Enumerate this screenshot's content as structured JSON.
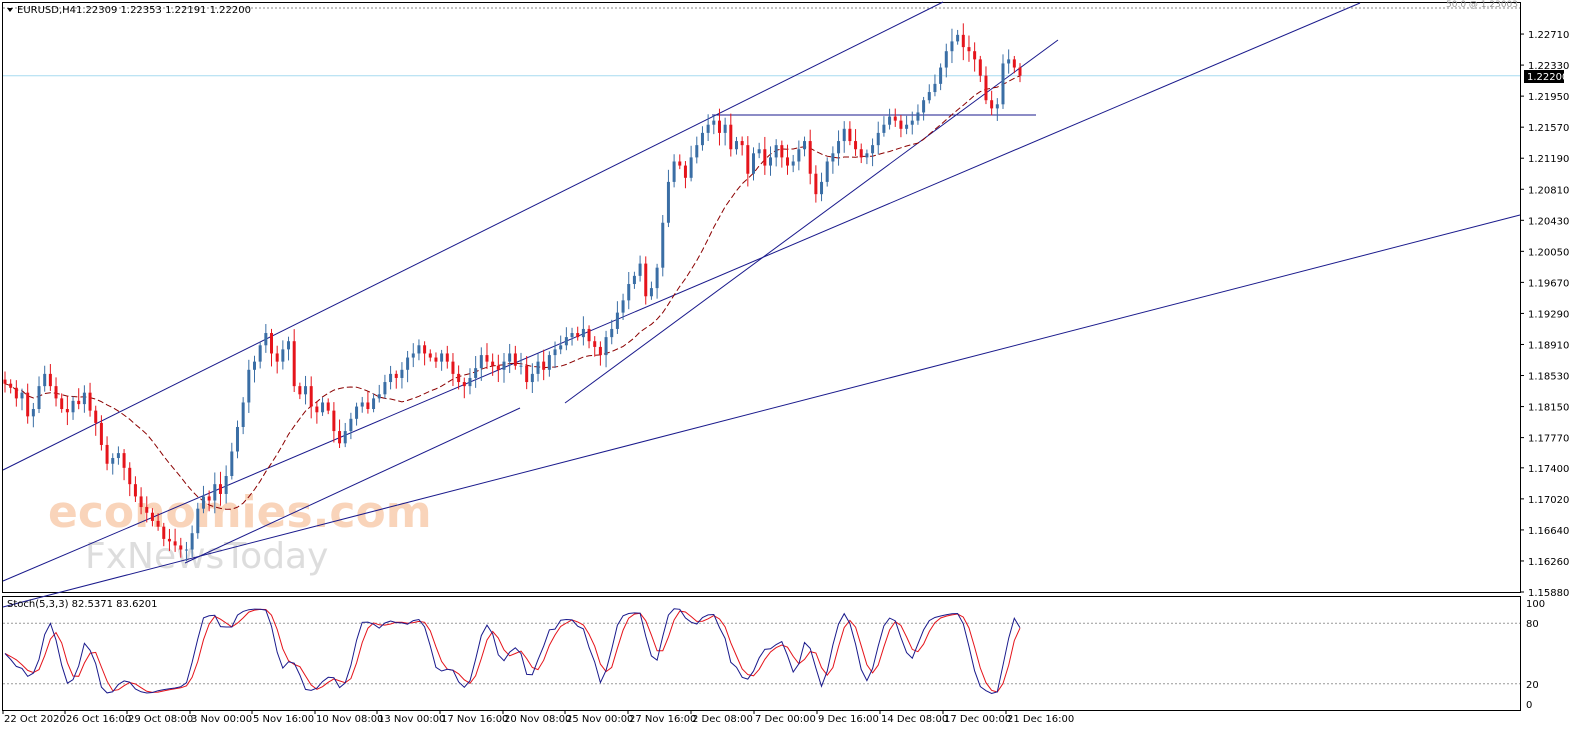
{
  "window": {
    "symbol_label": "EURUSD,H4",
    "ohlc_text": "1.22309 1.22353 1.22191 1.22200",
    "fib_label": "50.0 @ 1.23003"
  },
  "oscillator": {
    "label": "Stoch(5,3,3) 82.5371 83.6201",
    "levels": [
      "100",
      "80",
      "20",
      "0"
    ]
  },
  "watermark": {
    "line1": "economies.com",
    "line2": "FxNewsToday"
  },
  "colors": {
    "bull": "#3a6ea5",
    "bear": "#e5141b",
    "ma": "#8b0000",
    "trendline": "#1a1a8c",
    "stoch_k": "#1a1a8c",
    "stoch_d": "#e5141b",
    "price_line": "#a7dcf0",
    "current_price_bg": "#000000",
    "watermark_orange": "#f5b183",
    "watermark_gray": "#d0d0d0"
  },
  "chart_data": {
    "type": "candlestick",
    "timeframe": "H4",
    "current_price": "1.22200",
    "ylim": [
      1.1588,
      1.2309
    ],
    "y_ticks": [
      "1.22710",
      "1.22330",
      "1.21950",
      "1.21570",
      "1.21190",
      "1.20810",
      "1.20430",
      "1.20050",
      "1.19670",
      "1.19290",
      "1.18910",
      "1.18530",
      "1.18150",
      "1.17770",
      "1.17400",
      "1.17020",
      "1.16640",
      "1.16260",
      "1.15880"
    ],
    "x_ticks": [
      "22 Oct 2020",
      "26 Oct 16:00",
      "29 Oct 08:00",
      "3 Nov 00:00",
      "5 Nov 16:00",
      "10 Nov 08:00",
      "13 Nov 00:00",
      "17 Nov 16:00",
      "20 Nov 08:00",
      "25 Nov 00:00",
      "27 Nov 16:00",
      "2 Dec 08:00",
      "7 Dec 00:00",
      "9 Dec 16:00",
      "14 Dec 08:00",
      "17 Dec 00:00",
      "21 Dec 16:00"
    ],
    "closes": [
      1.1843,
      1.1838,
      1.1825,
      1.1832,
      1.1803,
      1.1812,
      1.184,
      1.1855,
      1.184,
      1.1825,
      1.1812,
      1.1808,
      1.1822,
      1.1818,
      1.1832,
      1.181,
      1.1795,
      1.1768,
      1.1745,
      1.1752,
      1.1758,
      1.174,
      1.172,
      1.1705,
      1.1692,
      1.1685,
      1.1675,
      1.1668,
      1.1653,
      1.165,
      1.1645,
      1.164,
      1.164,
      1.166,
      1.169,
      1.1705,
      1.17,
      1.172,
      1.1708,
      1.173,
      1.176,
      1.179,
      1.182,
      1.186,
      1.187,
      1.189,
      1.1905,
      1.188,
      1.187,
      1.1885,
      1.1895,
      1.184,
      1.183,
      1.184,
      1.1815,
      1.1808,
      1.182,
      1.181,
      1.1785,
      1.177,
      1.1785,
      1.18,
      1.1815,
      1.182,
      1.1812,
      1.1825,
      1.183,
      1.1845,
      1.1855,
      1.185,
      1.186,
      1.1875,
      1.188,
      1.189,
      1.188,
      1.1875,
      1.187,
      1.188,
      1.187,
      1.1855,
      1.1845,
      1.184,
      1.185,
      1.1862,
      1.1878,
      1.187,
      1.1865,
      1.186,
      1.187,
      1.188,
      1.1865,
      1.1865,
      1.1845,
      1.1855,
      1.187,
      1.186,
      1.1878,
      1.1885,
      1.189,
      1.19,
      1.1905,
      1.19,
      1.191,
      1.1895,
      1.1888,
      1.1878,
      1.19,
      1.191,
      1.193,
      1.1945,
      1.1965,
      1.1975,
      1.199,
      1.195,
      1.196,
      1.1985,
      1.204,
      1.209,
      1.2115,
      1.211,
      1.2095,
      1.212,
      1.2135,
      1.215,
      1.216,
      1.2165,
      1.215,
      1.216,
      1.213,
      1.214,
      1.2135,
      1.21,
      1.2125,
      1.213,
      1.211,
      1.212,
      1.2135,
      1.212,
      1.211,
      1.2115,
      1.213,
      1.214,
      1.21,
      1.2075,
      1.209,
      1.2115,
      1.2125,
      1.214,
      1.2155,
      1.214,
      1.213,
      1.212,
      1.2125,
      1.2135,
      1.215,
      1.216,
      1.217,
      1.2165,
      1.2155,
      1.216,
      1.2165,
      1.2175,
      1.219,
      1.22,
      1.221,
      1.223,
      1.225,
      1.2262,
      1.227,
      1.2255,
      1.225,
      1.224,
      1.222,
      1.219,
      1.218,
      1.2185,
      1.2235,
      1.224,
      1.223,
      1.222
    ],
    "trendlines": "ascending channel lines, rising support lines and a horizontal resistance line near 1.2180",
    "ma": "dashed moving average"
  }
}
